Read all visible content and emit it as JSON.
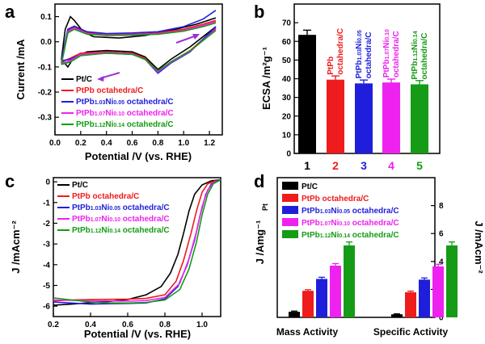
{
  "colors": {
    "black": "#000000",
    "red": "#ee1c1c",
    "blue": "#1f1fdb",
    "magenta": "#ee22ee",
    "green": "#159b15",
    "arrow": "#9b30d9"
  },
  "series_names": [
    "Pt/C",
    "PtPb octahedra/C",
    "PtPb1.03Ni0.05 octahedra/C",
    "PtPb1.07Ni0.10 octahedra/C",
    "PtPb1.12Ni0.14 octahedra/C"
  ],
  "panels": [
    {
      "label": "a"
    },
    {
      "label": "b"
    },
    {
      "label": "c"
    },
    {
      "label": "d"
    }
  ],
  "chart_data": [
    {
      "panel": "a",
      "type": "line",
      "xlabel": "Potential /V (vs. RHE)",
      "ylabel": "Current /mA",
      "xlim": [
        0.0,
        1.3
      ],
      "ylim": [
        -0.37,
        0.15
      ],
      "xticks": [
        "0.0",
        "0.2",
        "0.4",
        "0.6",
        "0.8",
        "1.0",
        "1.2"
      ],
      "yticks": [
        "0.1",
        "0.0",
        "-0.1",
        "-0.2",
        "-0.3"
      ],
      "legend_position": "bottom-left",
      "series": [
        {
          "name": "Pt/C",
          "color": "#000000",
          "upper": [
            [
              0.05,
              -0.07
            ],
            [
              0.08,
              0.05
            ],
            [
              0.12,
              0.1
            ],
            [
              0.15,
              0.085
            ],
            [
              0.22,
              0.04
            ],
            [
              0.3,
              0.02
            ],
            [
              0.5,
              0.015
            ],
            [
              0.7,
              0.025
            ],
            [
              0.9,
              0.045
            ],
            [
              1.1,
              0.07
            ],
            [
              1.25,
              0.095
            ]
          ],
          "lower": [
            [
              0.05,
              -0.07
            ],
            [
              0.1,
              -0.1
            ],
            [
              0.15,
              -0.06
            ],
            [
              0.25,
              -0.04
            ],
            [
              0.4,
              -0.035
            ],
            [
              0.6,
              -0.04
            ],
            [
              0.7,
              -0.06
            ],
            [
              0.8,
              -0.11
            ],
            [
              0.9,
              -0.07
            ],
            [
              1.05,
              -0.02
            ],
            [
              1.25,
              0.06
            ]
          ]
        },
        {
          "name": "PtPb octahedra/C",
          "color": "#ee1c1c",
          "upper": [
            [
              0.05,
              -0.08
            ],
            [
              0.1,
              0.045
            ],
            [
              0.15,
              0.06
            ],
            [
              0.25,
              0.035
            ],
            [
              0.4,
              0.03
            ],
            [
              0.6,
              0.03
            ],
            [
              0.8,
              0.035
            ],
            [
              1.0,
              0.05
            ],
            [
              1.15,
              0.07
            ],
            [
              1.25,
              0.085
            ]
          ],
          "lower": [
            [
              0.05,
              -0.08
            ],
            [
              0.12,
              -0.065
            ],
            [
              0.2,
              -0.045
            ],
            [
              0.4,
              -0.04
            ],
            [
              0.6,
              -0.045
            ],
            [
              0.7,
              -0.065
            ],
            [
              0.8,
              -0.12
            ],
            [
              0.9,
              -0.08
            ],
            [
              1.05,
              -0.035
            ],
            [
              1.25,
              0.055
            ]
          ]
        },
        {
          "name": "PtPb1.03Ni0.05 octahedra/C",
          "color": "#1f1fdb",
          "upper": [
            [
              0.05,
              -0.075
            ],
            [
              0.1,
              0.05
            ],
            [
              0.15,
              0.062
            ],
            [
              0.25,
              0.04
            ],
            [
              0.4,
              0.033
            ],
            [
              0.6,
              0.035
            ],
            [
              0.8,
              0.04
            ],
            [
              1.0,
              0.06
            ],
            [
              1.15,
              0.09
            ],
            [
              1.25,
              0.125
            ]
          ],
          "lower": [
            [
              0.05,
              -0.075
            ],
            [
              0.12,
              -0.07
            ],
            [
              0.2,
              -0.05
            ],
            [
              0.4,
              -0.045
            ],
            [
              0.6,
              -0.05
            ],
            [
              0.7,
              -0.07
            ],
            [
              0.8,
              -0.125
            ],
            [
              0.9,
              -0.085
            ],
            [
              1.05,
              -0.04
            ],
            [
              1.25,
              0.06
            ]
          ]
        },
        {
          "name": "PtPb1.07Ni0.10 octahedra/C",
          "color": "#ee22ee",
          "upper": [
            [
              0.05,
              -0.085
            ],
            [
              0.1,
              0.04
            ],
            [
              0.15,
              0.055
            ],
            [
              0.25,
              0.032
            ],
            [
              0.4,
              0.027
            ],
            [
              0.6,
              0.028
            ],
            [
              0.8,
              0.032
            ],
            [
              1.0,
              0.045
            ],
            [
              1.15,
              0.065
            ],
            [
              1.25,
              0.08
            ]
          ],
          "lower": [
            [
              0.05,
              -0.085
            ],
            [
              0.12,
              -0.075
            ],
            [
              0.2,
              -0.05
            ],
            [
              0.4,
              -0.043
            ],
            [
              0.6,
              -0.048
            ],
            [
              0.7,
              -0.07
            ],
            [
              0.8,
              -0.12
            ],
            [
              0.9,
              -0.082
            ],
            [
              1.05,
              -0.038
            ],
            [
              1.25,
              0.05
            ]
          ]
        },
        {
          "name": "PtPb1.12Ni0.14 octahedra/C",
          "color": "#159b15",
          "upper": [
            [
              0.05,
              -0.09
            ],
            [
              0.1,
              0.035
            ],
            [
              0.15,
              0.05
            ],
            [
              0.25,
              0.03
            ],
            [
              0.4,
              0.025
            ],
            [
              0.6,
              0.026
            ],
            [
              0.8,
              0.03
            ],
            [
              1.0,
              0.042
            ],
            [
              1.15,
              0.06
            ],
            [
              1.25,
              0.075
            ]
          ],
          "lower": [
            [
              0.05,
              -0.09
            ],
            [
              0.12,
              -0.08
            ],
            [
              0.2,
              -0.055
            ],
            [
              0.4,
              -0.045
            ],
            [
              0.6,
              -0.05
            ],
            [
              0.7,
              -0.07
            ],
            [
              0.8,
              -0.115
            ],
            [
              0.9,
              -0.08
            ],
            [
              1.05,
              -0.036
            ],
            [
              1.25,
              0.045
            ]
          ]
        }
      ]
    },
    {
      "panel": "b",
      "type": "bar",
      "ylabel": "ECSA /m²g⁻¹",
      "ylim": [
        0,
        80
      ],
      "yticks": [
        "0",
        "10",
        "20",
        "30",
        "40",
        "50",
        "60",
        "70"
      ],
      "categories": [
        "1",
        "2",
        "3",
        "4",
        "5"
      ],
      "values": [
        63.5,
        39.5,
        37.5,
        38,
        37
      ],
      "errors": [
        2.5,
        2,
        1.8,
        1.8,
        2
      ],
      "colors": [
        "#000000",
        "#ee1c1c",
        "#1f1fdb",
        "#ee22ee",
        "#159b15"
      ],
      "bar_labels": [
        [
          "Pt/C"
        ],
        [
          "PtPb",
          "octahedra/C"
        ],
        [
          "PtPb1.03Ni0.05",
          "octahedra/C"
        ],
        [
          "PtPb1.07Ni0.10",
          "octahedra/C"
        ],
        [
          "PtPb1.12Ni0.14",
          "octahedra/C"
        ]
      ]
    },
    {
      "panel": "c",
      "type": "line",
      "xlabel": "Potential /V (vs. RHE)",
      "ylabel": "J /mAcm⁻²",
      "xlim": [
        0.2,
        1.1
      ],
      "ylim": [
        -6.5,
        0.2
      ],
      "xticks": [
        "0.2",
        "0.4",
        "0.6",
        "0.8",
        "1.0"
      ],
      "yticks": [
        "0",
        "-1",
        "-2",
        "-3",
        "-4",
        "-5",
        "-6"
      ],
      "legend_position": "top-left",
      "series": [
        {
          "name": "Pt/C",
          "color": "#000000",
          "points": [
            [
              0.2,
              -5.95
            ],
            [
              0.3,
              -5.9
            ],
            [
              0.4,
              -5.83
            ],
            [
              0.5,
              -5.77
            ],
            [
              0.6,
              -5.68
            ],
            [
              0.7,
              -5.45
            ],
            [
              0.78,
              -5.05
            ],
            [
              0.83,
              -4.4
            ],
            [
              0.87,
              -3.5
            ],
            [
              0.9,
              -2.5
            ],
            [
              0.93,
              -1.4
            ],
            [
              0.96,
              -0.6
            ],
            [
              1.0,
              -0.15
            ],
            [
              1.05,
              0.05
            ],
            [
              1.1,
              0.1
            ]
          ]
        },
        {
          "name": "PtPb octahedra/C",
          "color": "#ee1c1c",
          "points": [
            [
              0.2,
              -5.75
            ],
            [
              0.3,
              -5.7
            ],
            [
              0.4,
              -5.68
            ],
            [
              0.5,
              -5.67
            ],
            [
              0.6,
              -5.66
            ],
            [
              0.7,
              -5.62
            ],
            [
              0.8,
              -5.45
            ],
            [
              0.86,
              -4.8
            ],
            [
              0.9,
              -3.8
            ],
            [
              0.94,
              -2.5
            ],
            [
              0.97,
              -1.4
            ],
            [
              1.0,
              -0.5
            ],
            [
              1.03,
              -0.1
            ],
            [
              1.07,
              0.05
            ],
            [
              1.1,
              0.1
            ]
          ]
        },
        {
          "name": "PtPb1.03Ni0.05 octahedra/C",
          "color": "#1f1fdb",
          "points": [
            [
              0.2,
              -5.8
            ],
            [
              0.3,
              -5.85
            ],
            [
              0.4,
              -5.9
            ],
            [
              0.5,
              -5.88
            ],
            [
              0.6,
              -5.87
            ],
            [
              0.7,
              -5.84
            ],
            [
              0.8,
              -5.65
            ],
            [
              0.87,
              -5.05
            ],
            [
              0.92,
              -4.0
            ],
            [
              0.96,
              -2.8
            ],
            [
              0.99,
              -1.6
            ],
            [
              1.02,
              -0.6
            ],
            [
              1.05,
              -0.1
            ],
            [
              1.08,
              0.05
            ],
            [
              1.1,
              0.1
            ]
          ]
        },
        {
          "name": "PtPb1.07Ni0.10 octahedra/C",
          "color": "#ee22ee",
          "points": [
            [
              0.2,
              -5.7
            ],
            [
              0.3,
              -5.72
            ],
            [
              0.4,
              -5.74
            ],
            [
              0.5,
              -5.75
            ],
            [
              0.6,
              -5.76
            ],
            [
              0.7,
              -5.73
            ],
            [
              0.8,
              -5.58
            ],
            [
              0.88,
              -4.9
            ],
            [
              0.93,
              -3.7
            ],
            [
              0.97,
              -2.4
            ],
            [
              1.0,
              -1.2
            ],
            [
              1.03,
              -0.4
            ],
            [
              1.06,
              -0.05
            ],
            [
              1.09,
              0.05
            ],
            [
              1.1,
              0.1
            ]
          ]
        },
        {
          "name": "PtPb1.12Ni0.14 octahedra/C",
          "color": "#159b15",
          "points": [
            [
              0.2,
              -5.6
            ],
            [
              0.3,
              -5.7
            ],
            [
              0.4,
              -5.8
            ],
            [
              0.5,
              -5.84
            ],
            [
              0.6,
              -5.85
            ],
            [
              0.7,
              -5.82
            ],
            [
              0.8,
              -5.7
            ],
            [
              0.88,
              -5.2
            ],
            [
              0.93,
              -4.2
            ],
            [
              0.97,
              -2.9
            ],
            [
              1.0,
              -1.6
            ],
            [
              1.03,
              -0.6
            ],
            [
              1.06,
              -0.1
            ],
            [
              1.09,
              0.05
            ],
            [
              1.1,
              0.1
            ]
          ]
        }
      ]
    },
    {
      "panel": "d",
      "type": "bar",
      "categories": [
        "Mass Activity",
        "Specific Activity"
      ],
      "ylabel_left": "J /Amg⁻¹",
      "ylabel_left_sub": "Pt",
      "ylabel_right": "J /mAcm⁻²",
      "ylim_right": [
        0,
        10
      ],
      "yticks_right": [
        "0",
        "2",
        "4",
        "6",
        "8"
      ],
      "legend_position": "top-left",
      "series": [
        {
          "name": "Pt/C",
          "color": "#000000",
          "values": [
            0.4,
            0.22
          ],
          "errors": [
            0.05,
            0.03
          ]
        },
        {
          "name": "PtPb octahedra/C",
          "color": "#ee1c1c",
          "values": [
            1.9,
            1.8
          ],
          "errors": [
            0.08,
            0.08
          ]
        },
        {
          "name": "PtPb1.03Ni0.05 octahedra/C",
          "color": "#1f1fdb",
          "values": [
            2.75,
            2.7
          ],
          "errors": [
            0.12,
            0.12
          ]
        },
        {
          "name": "PtPb1.07Ni0.10 octahedra/C",
          "color": "#ee22ee",
          "values": [
            3.7,
            3.65
          ],
          "errors": [
            0.15,
            0.15
          ]
        },
        {
          "name": "PtPb1.12Ni0.14 octahedra/C",
          "color": "#159b15",
          "values": [
            5.15,
            5.15
          ],
          "errors": [
            0.25,
            0.25
          ]
        }
      ]
    }
  ]
}
